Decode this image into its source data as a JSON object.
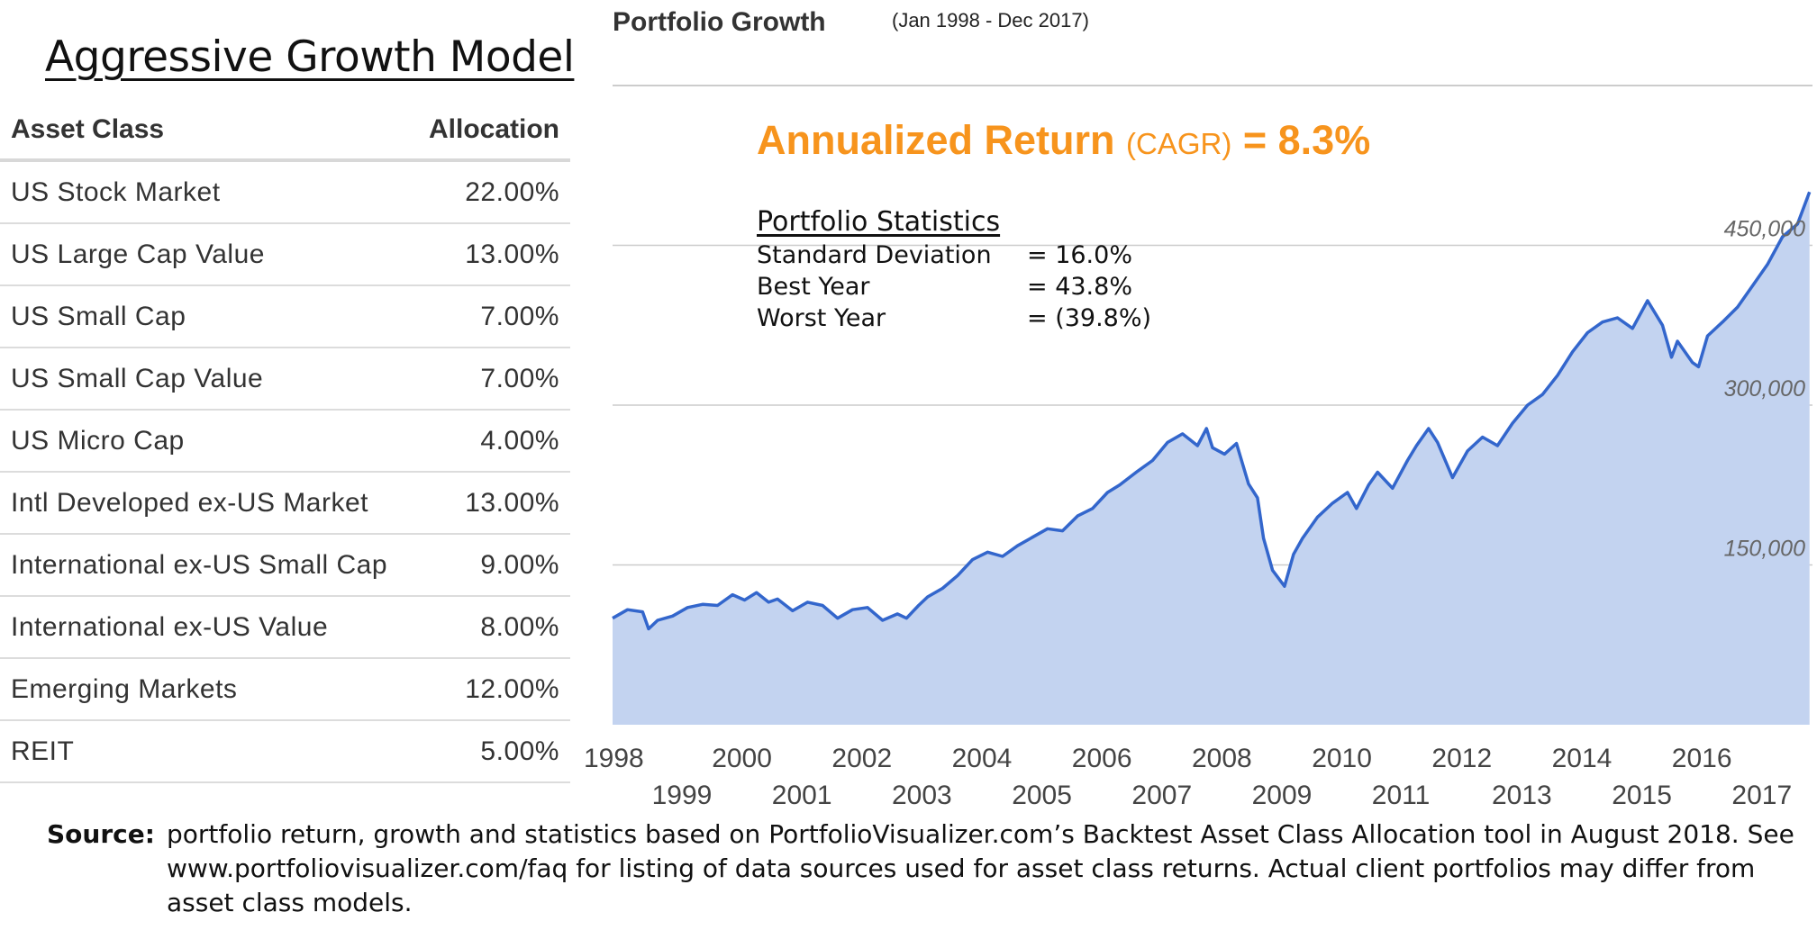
{
  "model_title": "Aggressive Growth Model",
  "table": {
    "headers": [
      "Asset Class",
      "Allocation"
    ],
    "rows": [
      [
        "US Stock Market",
        "22.00%"
      ],
      [
        "US Large Cap Value",
        "13.00%"
      ],
      [
        "US Small Cap",
        "7.00%"
      ],
      [
        "US Small Cap Value",
        "7.00%"
      ],
      [
        "US Micro Cap",
        "4.00%"
      ],
      [
        "Intl Developed ex-US Market",
        "13.00%"
      ],
      [
        "International ex-US Small Cap",
        "9.00%"
      ],
      [
        "International ex-US Value",
        "8.00%"
      ],
      [
        "Emerging Markets",
        "12.00%"
      ],
      [
        "REIT",
        "5.00%"
      ]
    ]
  },
  "annotation": {
    "main": "Annualized Return",
    "sub": "(CAGR)",
    "value": "= 8.3%"
  },
  "stats": {
    "title": "Portfolio Statistics",
    "rows": [
      {
        "label": "Standard Deviation",
        "value": "= 16.0%"
      },
      {
        "label": "Best Year",
        "value": "= 43.8%"
      },
      {
        "label": "Worst Year",
        "value": "= (39.8%)"
      }
    ]
  },
  "source": {
    "label": "Source:",
    "text": "portfolio return, growth and statistics based on PortfolioVisualizer.com’s Backtest Asset Class Allocation tool in August 2018. See www.portfoliovisualizer.com/faq for listing of data sources used for asset class returns. Actual client portfolios may differ from asset class models."
  },
  "colors": {
    "line": "#3366cc",
    "fill": "#c3d3f0",
    "accent": "#f7941d",
    "grid": "#cccccc"
  },
  "chart_data": {
    "type": "area",
    "title": "Portfolio Growth",
    "subtitle": "(Jan 1998 - Dec 2017)",
    "xlabel": "",
    "ylabel": "",
    "xlim": [
      1998.0,
      2018.0
    ],
    "ylim": [
      0,
      600000
    ],
    "yticks": [
      150000,
      300000,
      450000
    ],
    "ytick_labels": [
      "150,000",
      "300,000",
      "450,000"
    ],
    "xticks": [
      1998,
      1999,
      2000,
      2001,
      2002,
      2003,
      2004,
      2005,
      2006,
      2007,
      2008,
      2009,
      2010,
      2011,
      2012,
      2013,
      2014,
      2015,
      2016,
      2017
    ],
    "grid": true,
    "legend": "none",
    "series": [
      {
        "x": [
          1998.0,
          1998.25,
          1998.5,
          1998.6,
          1998.75,
          1999.0,
          1999.25,
          1999.5,
          1999.75,
          2000.0,
          2000.2,
          2000.4,
          2000.6,
          2000.75,
          2001.0,
          2001.25,
          2001.5,
          2001.75,
          2002.0,
          2002.25,
          2002.5,
          2002.75,
          2002.9,
          2003.1,
          2003.25,
          2003.5,
          2003.75,
          2004.0,
          2004.25,
          2004.5,
          2004.75,
          2005.0,
          2005.25,
          2005.5,
          2005.75,
          2006.0,
          2006.25,
          2006.45,
          2006.75,
          2007.0,
          2007.25,
          2007.5,
          2007.75,
          2007.9,
          2008.0,
          2008.2,
          2008.4,
          2008.6,
          2008.75,
          2008.85,
          2009.0,
          2009.2,
          2009.35,
          2009.5,
          2009.75,
          2010.0,
          2010.25,
          2010.4,
          2010.6,
          2010.75,
          2011.0,
          2011.25,
          2011.4,
          2011.6,
          2011.75,
          2012.0,
          2012.25,
          2012.5,
          2012.75,
          2013.0,
          2013.25,
          2013.5,
          2013.75,
          2014.0,
          2014.25,
          2014.5,
          2014.75,
          2015.0,
          2015.25,
          2015.5,
          2015.65,
          2015.75,
          2016.0,
          2016.1,
          2016.25,
          2016.5,
          2016.75,
          2017.0,
          2017.25,
          2017.5,
          2017.75,
          2017.95
        ],
        "y": [
          100000,
          108000,
          106000,
          90000,
          98000,
          102000,
          110000,
          113000,
          112000,
          122000,
          117000,
          124000,
          115000,
          118000,
          107000,
          115000,
          112000,
          100000,
          108000,
          110000,
          98000,
          104000,
          100000,
          112000,
          120000,
          128000,
          140000,
          155000,
          162000,
          158000,
          168000,
          176000,
          184000,
          182000,
          196000,
          203000,
          218000,
          225000,
          238000,
          248000,
          265000,
          273000,
          262000,
          278000,
          260000,
          254000,
          264000,
          226000,
          213000,
          175000,
          145000,
          130000,
          160000,
          175000,
          195000,
          208000,
          218000,
          203000,
          225000,
          237000,
          222000,
          248000,
          262000,
          278000,
          265000,
          232000,
          257000,
          270000,
          262000,
          283000,
          300000,
          310000,
          328000,
          350000,
          368000,
          378000,
          382000,
          372000,
          398000,
          375000,
          345000,
          360000,
          340000,
          336000,
          365000,
          378000,
          392000,
          412000,
          432000,
          458000,
          470000,
          500000
        ]
      }
    ]
  }
}
